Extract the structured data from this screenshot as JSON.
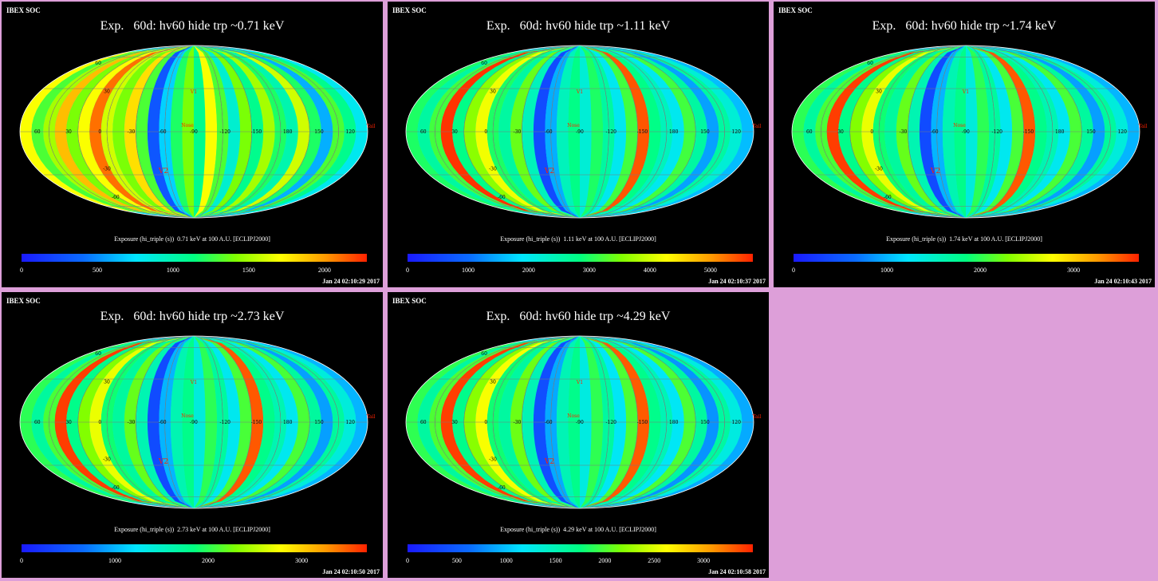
{
  "panels": [
    {
      "soc": "IBEX SOC",
      "title": "Exp.   60d: hv60 hide trp ~0.71 keV",
      "caption": "Exposure (hi_triple (s))  0.71 keV at 100 A.U. [ECLIPJ2000]",
      "stamp": "Jan 24 02:10:29 2017",
      "ticks": [
        "0",
        "500",
        "1000",
        "1500",
        "2000"
      ],
      "tick_values": [
        0,
        500,
        1000,
        1500,
        2000
      ],
      "vmax": 2280
    },
    {
      "soc": "IBEX SOC",
      "title": "Exp.   60d: hv60 hide trp ~1.11 keV",
      "caption": "Exposure (hi_triple (s))  1.11 keV at 100 A.U. [ECLIPJ2000]",
      "stamp": "Jan 24 02:10:37 2017",
      "ticks": [
        "0",
        "1000",
        "2000",
        "3000",
        "4000",
        "5000"
      ],
      "tick_values": [
        0,
        1000,
        2000,
        3000,
        4000,
        5000
      ],
      "vmax": 5700
    },
    {
      "soc": "IBEX SOC",
      "title": "Exp.   60d: hv60 hide trp ~1.74 keV",
      "caption": "Exposure (hi_triple (s))  1.74 keV at 100 A.U. [ECLIPJ2000]",
      "stamp": "Jan 24 02:10:43 2017",
      "ticks": [
        "0",
        "1000",
        "2000",
        "3000"
      ],
      "tick_values": [
        0,
        1000,
        2000,
        3000
      ],
      "vmax": 3700
    },
    {
      "soc": "IBEX SOC",
      "title": "Exp.   60d: hv60 hide trp ~2.73 keV",
      "caption": "Exposure (hi_triple (s))  2.73 keV at 100 A.U. [ECLIPJ2000]",
      "stamp": "Jan 24 02:10:50 2017",
      "ticks": [
        "0",
        "1000",
        "2000",
        "3000"
      ],
      "tick_values": [
        0,
        1000,
        2000,
        3000
      ],
      "vmax": 3700
    },
    {
      "soc": "IBEX SOC",
      "title": "Exp.   60d: hv60 hide trp ~4.29 keV",
      "caption": "Exposure (hi_triple (s))  4.29 keV at 100 A.U. [ECLIPJ2000]",
      "stamp": "Jan 24 02:10:58 2017",
      "ticks": [
        "0",
        "500",
        "1000",
        "1500",
        "2000",
        "2500",
        "3000"
      ],
      "tick_values": [
        0,
        500,
        1000,
        1500,
        2000,
        2500,
        3000
      ],
      "vmax": 3500
    }
  ],
  "map_labels": {
    "lon": [
      "60",
      "30",
      "0",
      "-30",
      "-60",
      "-90",
      "-120",
      "-150",
      "180",
      "150",
      "120"
    ],
    "lat": [
      "60",
      "30",
      "-30",
      "-60"
    ],
    "markers": [
      "V1",
      "V2",
      "Nose",
      "Tail"
    ]
  },
  "colors": {
    "background": "#dd9fd9",
    "panel": "#000000",
    "border": "#dd9fd9"
  },
  "chart_data": [
    {
      "type": "heatmap",
      "title": "Exp.   60d: hv60 hide trp ~0.71 keV",
      "projection": "Mollweide",
      "colorbar_label": "Exposure (hi_triple (s))  0.71 keV at 100 A.U. [ECLIPJ2000]",
      "colorbar_range": [
        0,
        2280
      ],
      "strip_exposure": [
        1700,
        1300,
        1500,
        1900,
        1400,
        1700,
        2100,
        1600,
        1400,
        1800,
        1300,
        300,
        700,
        1200,
        1400,
        1100,
        1700,
        1300,
        900,
        1400,
        1100,
        1500,
        1200,
        1000,
        1600,
        1200,
        600,
        1300,
        1100,
        800
      ]
    },
    {
      "type": "heatmap",
      "title": "Exp.   60d: hv60 hide trp ~1.11 keV",
      "projection": "Mollweide",
      "colorbar_label": "Exposure (hi_triple (s))  1.11 keV at 100 A.U. [ECLIPJ2000]",
      "colorbar_range": [
        0,
        5700
      ],
      "strip_exposure": [
        3000,
        2600,
        3200,
        5600,
        2800,
        3600,
        4200,
        3000,
        2600,
        3400,
        2400,
        600,
        1500,
        2400,
        2800,
        2200,
        3000,
        2600,
        2000,
        3200,
        5400,
        2800,
        2400,
        2000,
        3200,
        2600,
        1400,
        2600,
        2200,
        1600
      ]
    },
    {
      "type": "heatmap",
      "title": "Exp.   60d: hv60 hide trp ~1.74 keV",
      "projection": "Mollweide",
      "colorbar_label": "Exposure (hi_triple (s))  1.74 keV at 100 A.U. [ECLIPJ2000]",
      "colorbar_range": [
        0,
        3700
      ],
      "strip_exposure": [
        2000,
        1700,
        2100,
        3600,
        1800,
        2300,
        2700,
        1900,
        1700,
        2200,
        1600,
        400,
        1000,
        1600,
        1800,
        1400,
        2000,
        1700,
        1300,
        2100,
        3500,
        1800,
        1600,
        1300,
        2100,
        1700,
        900,
        1700,
        1400,
        1000
      ]
    },
    {
      "type": "heatmap",
      "title": "Exp.   60d: hv60 hide trp ~2.73 keV",
      "projection": "Mollweide",
      "colorbar_label": "Exposure (hi_triple (s))  2.73 keV at 100 A.U. [ECLIPJ2000]",
      "colorbar_range": [
        0,
        3700
      ],
      "strip_exposure": [
        2000,
        1700,
        2100,
        3600,
        1800,
        2300,
        2700,
        1900,
        1700,
        2200,
        1600,
        400,
        1000,
        1600,
        1800,
        1400,
        2000,
        1700,
        1300,
        2100,
        3500,
        1800,
        1600,
        1300,
        2100,
        1700,
        900,
        1700,
        1400,
        1000
      ]
    },
    {
      "type": "heatmap",
      "title": "Exp.   60d: hv60 hide trp ~4.29 keV",
      "projection": "Mollweide",
      "colorbar_label": "Exposure (hi_triple (s))  4.29 keV at 100 A.U. [ECLIPJ2000]",
      "colorbar_range": [
        0,
        3500
      ],
      "strip_exposure": [
        1900,
        1600,
        2000,
        3400,
        1700,
        2200,
        2600,
        1800,
        1600,
        2100,
        1500,
        400,
        900,
        1500,
        1700,
        1300,
        1900,
        1600,
        1200,
        2000,
        3300,
        1700,
        1500,
        1200,
        2000,
        1600,
        800,
        1600,
        1300,
        900
      ]
    }
  ]
}
